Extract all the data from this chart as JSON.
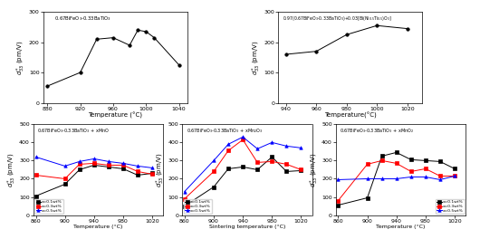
{
  "plot1": {
    "title": "0.67BiFeO$_3$-0.33BaTiO$_3$",
    "xlabel": "Temperature (°C)",
    "ylabel": "$d^*_{33}$ (pm/V)",
    "xlim": [
      875,
      1050
    ],
    "ylim": [
      0,
      300
    ],
    "xticks": [
      880,
      920,
      960,
      1000,
      1040
    ],
    "yticks": [
      0,
      100,
      200,
      300
    ],
    "x": [
      880,
      920,
      940,
      960,
      980,
      990,
      1000,
      1010,
      1040
    ],
    "y": [
      55,
      100,
      210,
      215,
      190,
      240,
      235,
      215,
      125
    ]
  },
  "plot2": {
    "title": "0.97(0.67BiFeO$_3$-0.33BaTiO$_3$)+0.03[Bi(Ni$_{0.5}$Ti$_{0.5}$)O$_3$]",
    "xlabel": "Temperature(°C)",
    "ylabel": "$d^*_{33}$ (pm/V)",
    "xlim": [
      935,
      1030
    ],
    "ylim": [
      0,
      300
    ],
    "xticks": [
      940,
      960,
      980,
      1000,
      1020
    ],
    "yticks": [
      0,
      100,
      200,
      300
    ],
    "x": [
      940,
      960,
      980,
      1000,
      1020
    ],
    "y": [
      160,
      170,
      225,
      255,
      245
    ]
  },
  "plot3": {
    "title": "0.67BiFeO$_3$-0.33BaTiO$_3$ + xMnO",
    "xlabel": "Temperature (°C)",
    "ylabel": "$d^*_{33}$ (pm/V)",
    "xlim": [
      857,
      1035
    ],
    "ylim": [
      0,
      500
    ],
    "xticks": [
      860,
      900,
      940,
      980,
      1020
    ],
    "yticks": [
      0,
      100,
      200,
      300,
      400,
      500
    ],
    "series": [
      {
        "label": "x=0.1wt%",
        "color": "black",
        "marker": "s",
        "x": [
          860,
          900,
          920,
          940,
          960,
          980,
          1000,
          1020
        ],
        "y": [
          105,
          170,
          250,
          275,
          265,
          255,
          220,
          230
        ]
      },
      {
        "label": "x=0.3wt%",
        "color": "red",
        "marker": "s",
        "x": [
          860,
          900,
          920,
          940,
          960,
          980,
          1000,
          1020
        ],
        "y": [
          220,
          200,
          280,
          285,
          275,
          275,
          240,
          225
        ]
      },
      {
        "label": "x=0.5wt%",
        "color": "blue",
        "marker": "^",
        "x": [
          860,
          900,
          920,
          940,
          960,
          980,
          1000,
          1020
        ],
        "y": [
          320,
          270,
          295,
          310,
          295,
          285,
          270,
          260
        ]
      }
    ],
    "legend_loc": "lower left"
  },
  "plot4": {
    "title": "0.67BiFeO$_3$-0.33BaTiO$_3$ + xMn$_2$O$_3$",
    "xlabel": "Sintering temperature (°C)",
    "ylabel": "$d^*_{33}$ (pm/V)",
    "xlim": [
      857,
      1035
    ],
    "ylim": [
      0,
      500
    ],
    "xticks": [
      860,
      900,
      940,
      980,
      1020
    ],
    "yticks": [
      0,
      100,
      200,
      300,
      400,
      500
    ],
    "series": [
      {
        "label": "x=0.1wt%",
        "color": "black",
        "marker": "s",
        "x": [
          860,
          900,
          920,
          940,
          960,
          980,
          1000,
          1020
        ],
        "y": [
          50,
          155,
          255,
          265,
          250,
          320,
          240,
          245
        ]
      },
      {
        "label": "x=0.3wt%",
        "color": "red",
        "marker": "s",
        "x": [
          860,
          900,
          920,
          940,
          960,
          980,
          1000,
          1020
        ],
        "y": [
          90,
          240,
          355,
          415,
          290,
          295,
          280,
          250
        ]
      },
      {
        "label": "x=0.5wt%",
        "color": "blue",
        "marker": "^",
        "x": [
          860,
          900,
          920,
          940,
          960,
          980,
          1000,
          1020
        ],
        "y": [
          130,
          300,
          390,
          430,
          365,
          400,
          380,
          370
        ]
      }
    ],
    "legend_loc": "lower left"
  },
  "plot5": {
    "title": "0.67BiFeO$_3$-0.33BaTiO$_3$ + xMnO$_2$",
    "xlabel": "Temperature (°C)",
    "ylabel": "$d^*_{33}$ (pm/V)",
    "xlim": [
      857,
      1035
    ],
    "ylim": [
      0,
      500
    ],
    "xticks": [
      860,
      900,
      940,
      980,
      1020
    ],
    "yticks": [
      0,
      100,
      200,
      300,
      400,
      500
    ],
    "series": [
      {
        "label": "x=0.1wt%",
        "color": "black",
        "marker": "s",
        "x": [
          860,
          900,
          920,
          940,
          960,
          980,
          1000,
          1020
        ],
        "y": [
          55,
          95,
          325,
          345,
          305,
          300,
          295,
          255
        ]
      },
      {
        "label": "x=0.3wt%",
        "color": "red",
        "marker": "s",
        "x": [
          860,
          900,
          920,
          940,
          960,
          980,
          1000,
          1020
        ],
        "y": [
          80,
          280,
          300,
          285,
          240,
          255,
          215,
          215
        ]
      },
      {
        "label": "x=0.5wt%",
        "color": "blue",
        "marker": "^",
        "x": [
          860,
          900,
          920,
          940,
          960,
          980,
          1000,
          1020
        ],
        "y": [
          195,
          200,
          200,
          200,
          210,
          210,
          195,
          215
        ]
      }
    ],
    "legend_loc": "lower right"
  }
}
